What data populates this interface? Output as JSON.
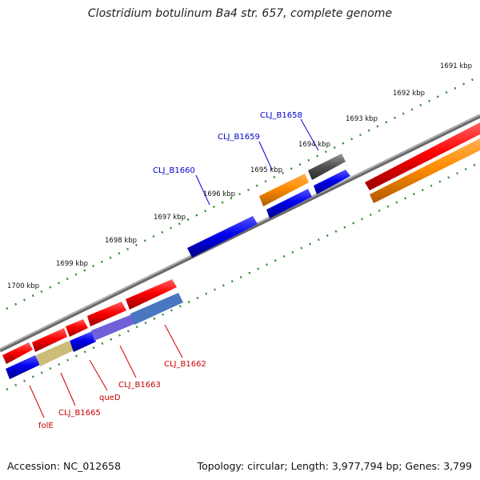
{
  "title": "Clostridium botulinum Ba4 str. 657, complete genome",
  "footer": {
    "accession": "Accession: NC_012658",
    "summary": "Topology: circular; Length: 3,977,794 bp; Genes: 3,799"
  },
  "scale_labels": [
    "1691 kbp",
    "1692 kbp",
    "1693 kbp",
    "1694 kbp",
    "1695 kbp",
    "1696 kbp",
    "1697 kbp",
    "1698 kbp",
    "1699 kbp",
    "1700 kbp"
  ],
  "colors": {
    "forward_cds": "#ff0000",
    "reverse_cds": "#0000ee",
    "orange_feature": "#ff8c00",
    "gray_feature": "#555555",
    "backbone": "#888888",
    "ticks": "#2e8b2e",
    "top_labels": "#0000cc",
    "bottom_labels": "#cc0000"
  },
  "gene_labels": {
    "top": [
      "CLJ_B1658",
      "CLJ_B1659",
      "CLJ_B1660"
    ],
    "bottom": [
      "CLJ_B1662",
      "CLJ_B1663",
      "queD",
      "CLJ_B1665",
      "folE"
    ]
  }
}
